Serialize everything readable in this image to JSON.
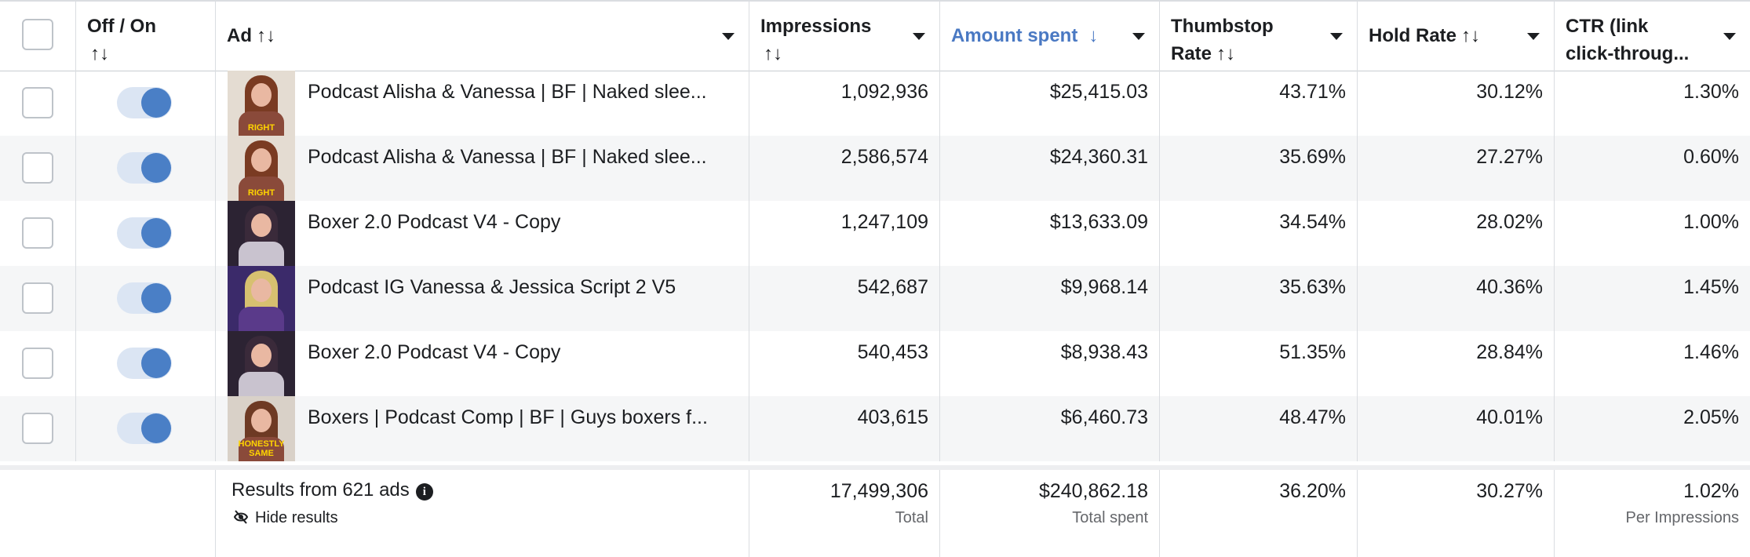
{
  "header": {
    "offon": "Off / On",
    "ad": "Ad",
    "impressions": "Impressions",
    "amount_spent": "Amount spent",
    "thumbstop_l1": "Thumbstop",
    "thumbstop_l2": "Rate",
    "hold_rate": "Hold Rate",
    "ctr_l1": "CTR (link",
    "ctr_l2": "click-throug...",
    "sort_icon": "↑↓",
    "sort_desc_icon": "↓"
  },
  "rows": [
    {
      "name": "Podcast Alisha & Vanessa | BF | Naked slee...",
      "thumb_caption": "RIGHT",
      "impressions": "1,092,936",
      "amount": "$25,415.03",
      "thumbstop": "43.71%",
      "hold": "30.12%",
      "ctr": "1.30%"
    },
    {
      "name": "Podcast Alisha & Vanessa | BF | Naked slee...",
      "thumb_caption": "RIGHT",
      "impressions": "2,586,574",
      "amount": "$24,360.31",
      "thumbstop": "35.69%",
      "hold": "27.27%",
      "ctr": "0.60%"
    },
    {
      "name": "Boxer 2.0 Podcast V4 - Copy",
      "thumb_caption": "",
      "impressions": "1,247,109",
      "amount": "$13,633.09",
      "thumbstop": "34.54%",
      "hold": "28.02%",
      "ctr": "1.00%"
    },
    {
      "name": "Podcast IG Vanessa & Jessica Script 2 V5",
      "thumb_caption": "",
      "impressions": "542,687",
      "amount": "$9,968.14",
      "thumbstop": "35.63%",
      "hold": "40.36%",
      "ctr": "1.45%"
    },
    {
      "name": "Boxer 2.0 Podcast V4 - Copy",
      "thumb_caption": "",
      "impressions": "540,453",
      "amount": "$8,938.43",
      "thumbstop": "51.35%",
      "hold": "28.84%",
      "ctr": "1.46%"
    },
    {
      "name": "Boxers | Podcast Comp | BF | Guys boxers f...",
      "thumb_caption": "HONESTLY SAME",
      "impressions": "403,615",
      "amount": "$6,460.73",
      "thumbstop": "48.47%",
      "hold": "40.01%",
      "ctr": "2.05%"
    }
  ],
  "footer": {
    "results": "Results from 621 ads",
    "info_icon": "i",
    "hide_results": "Hide results",
    "impressions": "17,499,306",
    "impressions_sub": "Total",
    "amount": "$240,862.18",
    "amount_sub": "Total spent",
    "thumbstop": "36.20%",
    "hold": "30.27%",
    "ctr": "1.02%",
    "ctr_sub": "Per Impressions"
  },
  "colors": {
    "accent": "#4a7fc6",
    "sorted_header": "#4a79c3",
    "border": "#dadde1",
    "alt_row": "#f5f6f7"
  }
}
